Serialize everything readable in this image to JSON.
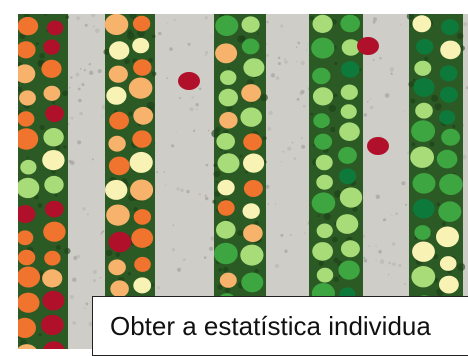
{
  "caption": {
    "text": "Obter a estatística individua"
  },
  "colors": {
    "soil_light": "#cfcdc8",
    "soil_dark": "#9a9893",
    "canopy_green": "#2c5a24",
    "crown_red": "#b0102a",
    "crown_orange": "#f0742e",
    "crown_peach": "#f7b36c",
    "crown_cream": "#f8f2b4",
    "crown_light_green": "#a8dc78",
    "crown_green": "#3da641",
    "crown_dark_green": "#0d7a3c"
  },
  "image": {
    "subject": "aerial view of crop rows with individual plant crowns colored by class"
  }
}
